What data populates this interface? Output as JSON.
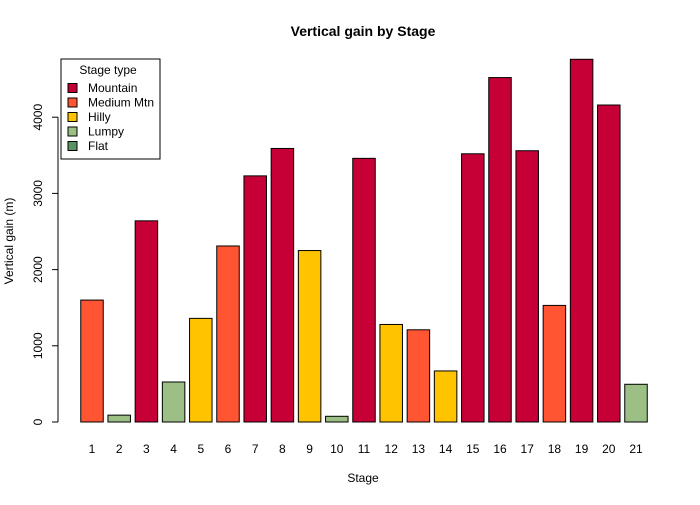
{
  "chart_data": {
    "type": "bar",
    "title": "Vertical gain by Stage",
    "xlabel": "Stage",
    "ylabel": "Vertical gain (m)",
    "ylim": [
      0,
      4800
    ],
    "yticks": [
      0,
      1000,
      2000,
      3000,
      4000
    ],
    "grid": false,
    "categories": [
      "1",
      "2",
      "3",
      "4",
      "5",
      "6",
      "7",
      "8",
      "9",
      "10",
      "11",
      "12",
      "13",
      "14",
      "15",
      "16",
      "17",
      "18",
      "19",
      "20",
      "21"
    ],
    "values": [
      1600,
      90,
      2640,
      525,
      1360,
      2310,
      3230,
      3590,
      2250,
      75,
      3460,
      1280,
      1210,
      670,
      3520,
      4520,
      3560,
      1530,
      4760,
      4160,
      495
    ],
    "stage_types": [
      "Medium Mtn",
      "Lumpy",
      "Mountain",
      "Lumpy",
      "Hilly",
      "Medium Mtn",
      "Mountain",
      "Mountain",
      "Hilly",
      "Lumpy",
      "Mountain",
      "Hilly",
      "Medium Mtn",
      "Hilly",
      "Mountain",
      "Mountain",
      "Mountain",
      "Medium Mtn",
      "Mountain",
      "Mountain",
      "Lumpy"
    ],
    "legend": {
      "title": "Stage type",
      "placement": "top-left",
      "entries": [
        {
          "name": "Mountain",
          "color": "#C60036"
        },
        {
          "name": "Medium Mtn",
          "color": "#FF5533"
        },
        {
          "name": "Hilly",
          "color": "#FFC300"
        },
        {
          "name": "Lumpy",
          "color": "#9CBF85"
        },
        {
          "name": "Flat",
          "color": "#5A9460"
        }
      ]
    }
  }
}
